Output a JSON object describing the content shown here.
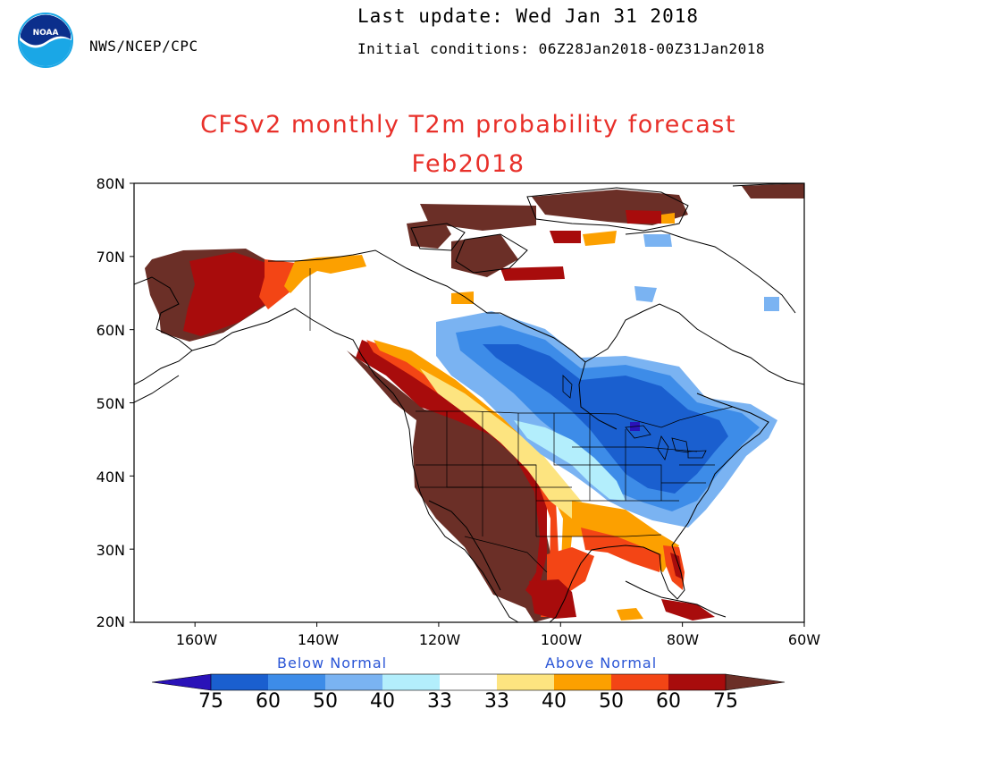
{
  "header": {
    "agency": "NWS/NCEP/CPC",
    "last_update": "Last update: Wed Jan 31 2018",
    "initial_conditions": "Initial conditions: 06Z28Jan2018-00Z31Jan2018",
    "logo_text": "NOAA"
  },
  "title": {
    "line1": "CFSv2 monthly T2m probability forecast",
    "line2": "Feb2018"
  },
  "map": {
    "lat_labels": [
      "80N",
      "70N",
      "60N",
      "50N",
      "40N",
      "30N",
      "20N"
    ],
    "lon_labels": [
      "160W",
      "140W",
      "120W",
      "100W",
      "80W",
      "60W"
    ],
    "lat_range": [
      20,
      80
    ],
    "lon_range": [
      -170,
      -60
    ]
  },
  "legend": {
    "below_label": "Below Normal",
    "above_label": "Above Normal",
    "ticks": [
      "75",
      "60",
      "50",
      "40",
      "33",
      "33",
      "40",
      "50",
      "60",
      "75"
    ],
    "colors": {
      "below": [
        "#2a12b8",
        "#1a5fcf",
        "#3d8ce8",
        "#7ab3f2",
        "#b3eefc"
      ],
      "neutral": "#ffffff",
      "above": [
        "#fde480",
        "#fca000",
        "#f34515",
        "#a80c0c",
        "#6b2f27"
      ]
    }
  },
  "line_color": "#000000"
}
